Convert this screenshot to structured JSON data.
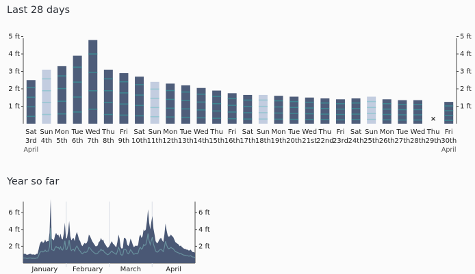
{
  "sections": {
    "last28_title": "Last 28 days",
    "ytd_title": "Year so far"
  },
  "colors": {
    "bar_dark": "#4e5d7a",
    "bar_light": "#c3cde0",
    "bar_stripe": "#3d8d95",
    "bar_stripe_light": "#8fc4cf",
    "axis": "#444444",
    "area": "#4a5875",
    "area_band": "#6f9fa8"
  },
  "chart_data": [
    {
      "type": "bar",
      "title": "Last 28 days",
      "unit": "ft",
      "ylim": [
        0,
        5.5
      ],
      "yticks": [
        "1 ft",
        "2 ft",
        "3 ft",
        "4 ft",
        "5 ft"
      ],
      "ytick_values": [
        1,
        2,
        3,
        4,
        5
      ],
      "day_labels": [
        "Sat",
        "Sun",
        "Mon",
        "Tue",
        "Wed",
        "Thu",
        "Fri",
        "Sat",
        "Sun",
        "Mon",
        "Tue",
        "Wed",
        "Thu",
        "Fri",
        "Sat",
        "Sun",
        "Mon",
        "Tue",
        "Wed",
        "Thu",
        "Fri",
        "Sat",
        "Sun",
        "Mon",
        "Tue",
        "Wed",
        "Thu",
        "Fri"
      ],
      "date_labels": [
        "3rd",
        "4th",
        "5th",
        "6th",
        "7th",
        "8th",
        "9th",
        "10th",
        "11th",
        "12th",
        "13th",
        "14th",
        "15th",
        "16th",
        "17th",
        "18th",
        "19th",
        "20th",
        "21st",
        "22nd",
        "23rd",
        "24th",
        "25th",
        "26th",
        "27th",
        "28th",
        "29th",
        "30th"
      ],
      "month_start_label": "April",
      "month_end_label": "April",
      "values": [
        2.5,
        3.1,
        3.3,
        3.9,
        4.8,
        3.1,
        2.9,
        2.7,
        2.4,
        2.3,
        2.2,
        2.05,
        1.9,
        1.75,
        1.65,
        1.65,
        1.6,
        1.55,
        1.5,
        1.45,
        1.4,
        1.45,
        1.55,
        1.4,
        1.35,
        1.35,
        0.0,
        1.25
      ],
      "light": [
        false,
        true,
        false,
        false,
        false,
        false,
        false,
        false,
        true,
        false,
        false,
        false,
        false,
        false,
        false,
        true,
        false,
        false,
        false,
        false,
        false,
        false,
        true,
        false,
        false,
        false,
        false,
        false
      ],
      "missing_marker": [
        false,
        false,
        false,
        false,
        false,
        false,
        false,
        false,
        false,
        false,
        false,
        false,
        false,
        false,
        false,
        false,
        false,
        false,
        false,
        false,
        false,
        false,
        false,
        false,
        false,
        false,
        true,
        false
      ],
      "missing_symbol": "×"
    },
    {
      "type": "area",
      "title": "Year so far",
      "unit": "ft",
      "ylim": [
        0,
        8
      ],
      "yticks": [
        "2 ft",
        "4 ft",
        "6 ft"
      ],
      "ytick_values": [
        2,
        4,
        6
      ],
      "months": [
        "January",
        "February",
        "March",
        "April"
      ],
      "values": [
        1.1,
        1.1,
        1.1,
        1.0,
        1.0,
        1.05,
        1.1,
        1.1,
        1.0,
        1.05,
        1.0,
        1.0,
        1.1,
        1.1,
        1.6,
        2.2,
        2.5,
        2.6,
        2.4,
        2.5,
        2.8,
        2.5,
        2.6,
        2.6,
        3.6,
        7.6,
        2.9,
        2.8,
        2.7,
        3.3,
        3.6,
        3.3,
        3.4,
        3.0,
        3.5,
        2.9,
        2.8,
        3.5,
        4.8,
        2.9,
        3.0,
        3.8,
        5.0,
        3.2,
        2.7,
        2.9,
        3.0,
        2.6,
        3.3,
        3.7,
        3.3,
        2.8,
        2.6,
        2.2,
        2.0,
        2.2,
        2.4,
        2.3,
        2.4,
        2.7,
        3.4,
        3.2,
        2.9,
        2.6,
        2.4,
        2.2,
        2.0,
        2.0,
        2.1,
        2.5,
        2.6,
        3.0,
        2.7,
        2.8,
        2.4,
        2.2,
        2.0,
        1.8,
        1.9,
        2.1,
        2.4,
        2.6,
        2.3,
        2.2,
        2.0,
        1.9,
        2.5,
        3.4,
        2.9,
        1.9,
        1.7,
        1.8,
        3.0,
        3.0,
        2.8,
        2.2,
        2.0,
        2.3,
        2.9,
        2.6,
        2.2,
        1.9,
        2.0,
        2.1,
        2.0,
        2.2,
        3.1,
        3.4,
        3.0,
        3.2,
        4.0,
        3.8,
        4.0,
        5.0,
        6.4,
        4.8,
        4.0,
        4.9,
        5.6,
        4.1,
        3.4,
        2.6,
        2.4,
        2.4,
        2.7,
        2.9,
        3.0,
        2.7,
        2.5,
        3.4,
        4.7,
        3.9,
        3.3,
        3.1,
        3.2,
        3.4,
        3.2,
        3.1,
        2.8,
        2.5,
        2.4,
        2.3,
        2.2,
        2.0,
        2.1,
        1.9,
        1.8,
        1.7,
        1.7,
        1.6,
        1.6,
        1.5,
        1.5,
        1.6,
        1.4,
        1.3,
        1.3,
        1.2
      ]
    }
  ]
}
